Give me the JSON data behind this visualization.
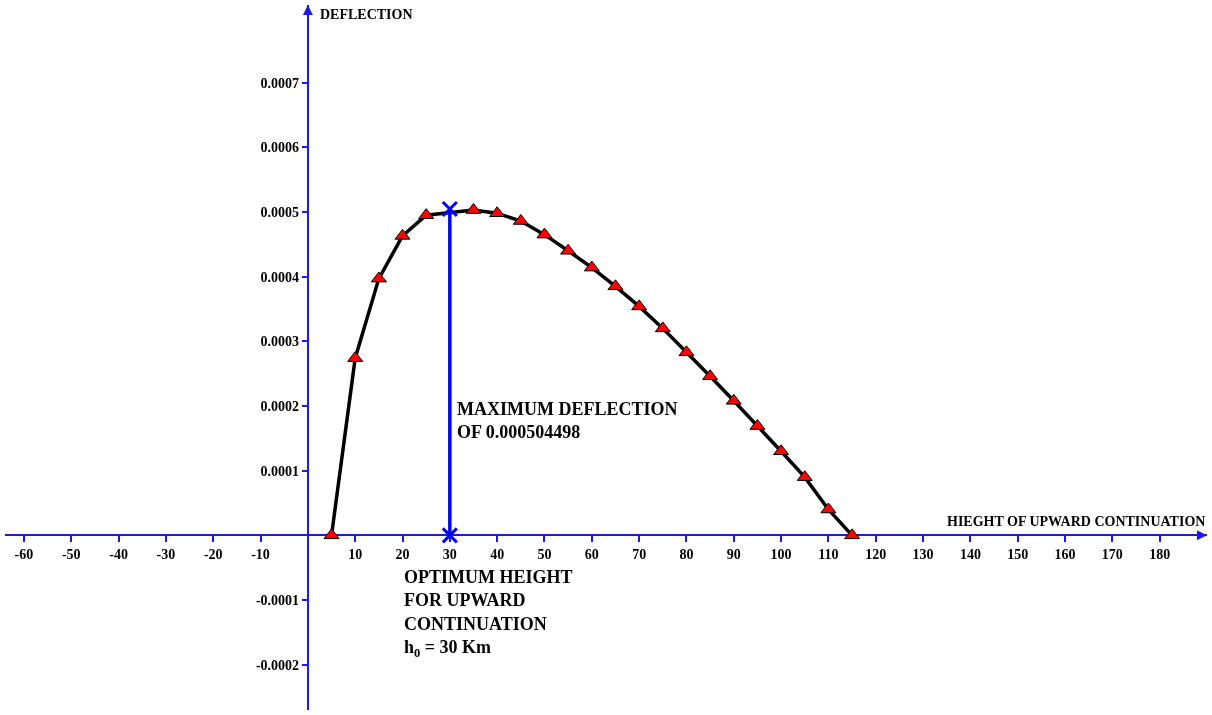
{
  "chart_data": {
    "type": "line",
    "xlabel": "HIEGHT OF UPWARD CONTINUATION",
    "ylabel": "DEFLECTION",
    "xlim": [
      -64,
      190
    ],
    "ylim": [
      -0.00027,
      0.00082
    ],
    "xticks": [
      -60,
      -50,
      -40,
      -30,
      -20,
      -10,
      10,
      20,
      30,
      40,
      50,
      60,
      70,
      80,
      90,
      100,
      110,
      120,
      130,
      140,
      150,
      160,
      170,
      180
    ],
    "yticks": [
      -0.0002,
      -0.0001,
      0.0001,
      0.0002,
      0.0003,
      0.0004,
      0.0005,
      0.0006,
      0.0007
    ],
    "series": [
      {
        "color": "#000000",
        "marker": "triangle",
        "colors": [
          "#ff0000",
          "#ff0000",
          "#ff0000",
          "#ff0000",
          "#ff0000",
          "#ff0000",
          "#ff0000",
          "#ff0000",
          "#ff0000",
          "#ff0000",
          "#ff0000",
          "#ff0000",
          "#ff0000",
          "#ff0000",
          "#ff0000",
          "#ff0000",
          "#ff0000",
          "#ff0000",
          "#ff0000",
          "#ff0000",
          "#ff0000",
          "#ff0000"
        ],
        "x": [
          5,
          10,
          15,
          20,
          25,
          35,
          40,
          45,
          50,
          55,
          60,
          65,
          70,
          75,
          80,
          85,
          90,
          95,
          100,
          105,
          110,
          115
        ],
        "values": [
          0,
          0.000274,
          0.000397,
          0.000463,
          0.000495,
          0.000503,
          0.000498,
          0.000486,
          0.000465,
          0.00044,
          0.000414,
          0.000385,
          0.000354,
          0.00032,
          0.000283,
          0.000246,
          0.000208,
          0.000169,
          0.00013,
          9e-05,
          4e-05,
          0
        ]
      },
      {
        "color": "#0000ff",
        "marker": "cross",
        "x": [
          30,
          30
        ],
        "values": [
          0,
          0.000504498
        ]
      }
    ],
    "annotations": [
      "MAXIMUM DEFLECTION\nOF 0.000504498",
      "OPTIMUM HEIGHT\nFOR UPWARD\nCONTINUATION\nh$_{0}$ = 30 Km"
    ]
  }
}
